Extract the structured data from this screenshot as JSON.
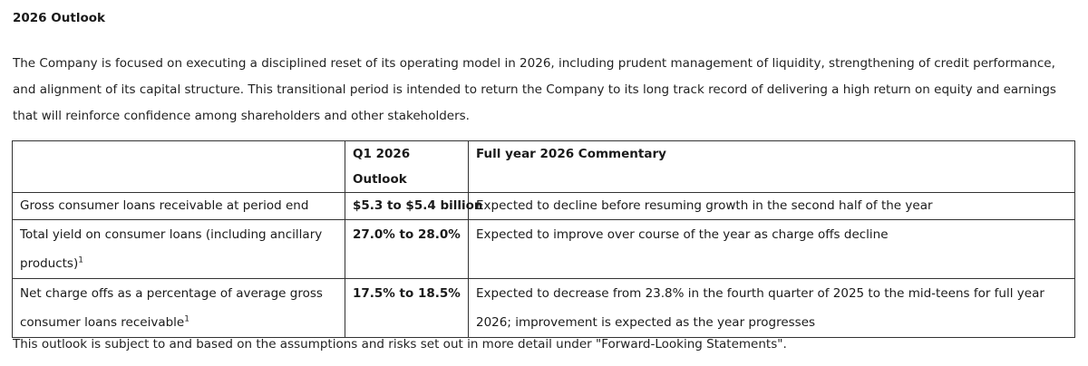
{
  "title": "2026 Outlook",
  "intro": "The Company is focused on executing a disciplined reset of its operating model in 2026, including prudent management of liquidity, strengthening of credit performance, and alignment of its capital structure. This transitional period is intended to return the Company to its long track record of delivering a high return on equity and earnings that will reinforce confidence among shareholders and other stakeholders.",
  "table": {
    "headers": [
      "",
      "Q1 2026 Outlook",
      "Full year 2026 Commentary"
    ],
    "rows": [
      {
        "label": "Gross consumer loans receivable at period end",
        "footnote": "",
        "value": "$5.3 to $5.4 billion",
        "commentary": "Expected to decline before resuming growth in the second half of the year"
      },
      {
        "label": "Total yield on consumer loans (including ancillary products)",
        "footnote": "1",
        "value": "27.0% to 28.0%",
        "commentary": "Expected to improve over course of the year as charge offs decline"
      },
      {
        "label": "Net charge offs as a percentage of average gross consumer loans receivable",
        "footnote": "1",
        "value": "17.5% to 18.5%",
        "commentary": "Expected to decrease from 23.8% in the fourth quarter of 2025 to the mid-teens for full year 2026; improvement is expected as the year progresses"
      }
    ]
  },
  "footer": "This outlook is subject to and based on the assumptions and risks set out in more detail under \"Forward-Looking Statements\"."
}
